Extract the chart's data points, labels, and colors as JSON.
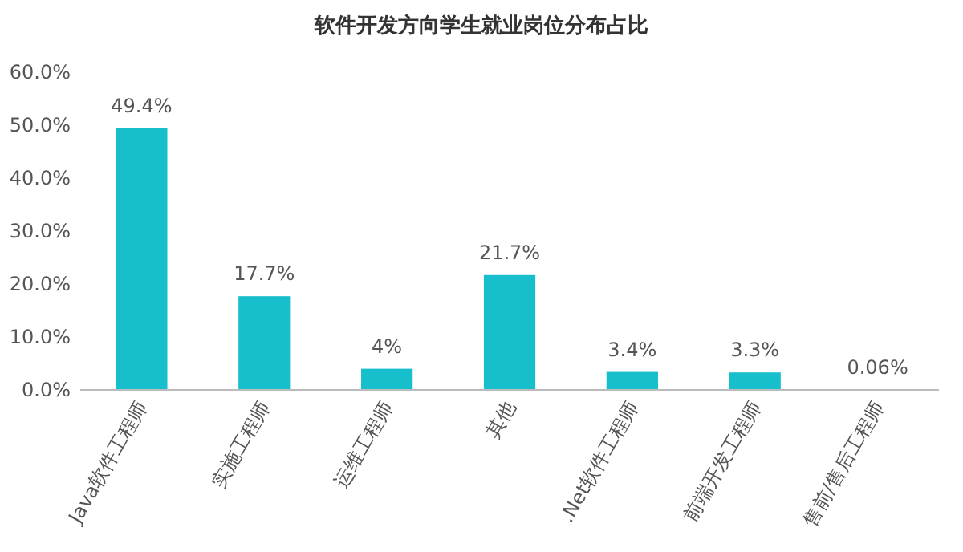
{
  "chart_data": {
    "type": "bar",
    "title": "软件开发方向学生就业岗位分布占比",
    "categories": [
      "Java软件工程师",
      "实施工程师",
      "运维工程师",
      "其他",
      ".Net软件工程师",
      "前端开发工程师",
      "售前/售后工程师"
    ],
    "values": [
      49.4,
      17.7,
      4,
      21.7,
      3.4,
      3.3,
      0.06
    ],
    "value_labels": [
      "49.4%",
      "17.7%",
      "4%",
      "21.7%",
      "3.4%",
      "3.3%",
      "0.06%"
    ],
    "color": "#17bfcc",
    "ylim": [
      0,
      60
    ],
    "yticks": [
      {
        "value": 0,
        "label": "0.0%"
      },
      {
        "value": 10,
        "label": "10.0%"
      },
      {
        "value": 20,
        "label": "20.0%"
      },
      {
        "value": 30,
        "label": "30.0%"
      },
      {
        "value": 40,
        "label": "40.0%"
      },
      {
        "value": 50,
        "label": "50.0%"
      },
      {
        "value": 60,
        "label": "60.0%"
      }
    ],
    "grid": false
  }
}
